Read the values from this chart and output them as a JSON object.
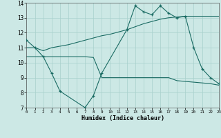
{
  "xlabel": "Humidex (Indice chaleur)",
  "bg_color": "#cce8e5",
  "grid_color": "#a8d0cc",
  "line_color": "#1a6b63",
  "xlim": [
    0,
    23
  ],
  "ylim": [
    7,
    14
  ],
  "xticks": [
    0,
    1,
    2,
    3,
    4,
    5,
    6,
    7,
    8,
    9,
    10,
    11,
    12,
    13,
    14,
    15,
    16,
    17,
    18,
    19,
    20,
    21,
    22,
    23
  ],
  "yticks": [
    7,
    8,
    9,
    10,
    11,
    12,
    13,
    14
  ],
  "line1_x": [
    0,
    1,
    2,
    3,
    4,
    7,
    8,
    9,
    12,
    13,
    14,
    15,
    16,
    17,
    18,
    19,
    20,
    21,
    22,
    23
  ],
  "line1_y": [
    11.5,
    11.0,
    10.4,
    9.3,
    8.1,
    7.0,
    7.8,
    9.3,
    12.2,
    13.8,
    13.4,
    13.2,
    13.8,
    13.3,
    13.0,
    13.1,
    11.0,
    9.6,
    9.0,
    8.6
  ],
  "line2_x": [
    0,
    1,
    2,
    3,
    4,
    5,
    6,
    7,
    8,
    9,
    10,
    11,
    12,
    13,
    14,
    15,
    16,
    17,
    18,
    19,
    20,
    21,
    22,
    23
  ],
  "line2_y": [
    11.0,
    11.0,
    10.8,
    11.0,
    11.1,
    11.2,
    11.35,
    11.5,
    11.65,
    11.8,
    11.9,
    12.05,
    12.2,
    12.4,
    12.6,
    12.75,
    12.9,
    13.0,
    13.05,
    13.1,
    13.1,
    13.1,
    13.1,
    13.1
  ],
  "line3_x": [
    0,
    1,
    2,
    3,
    4,
    5,
    6,
    7,
    8,
    9,
    10,
    11,
    12,
    13,
    14,
    15,
    16,
    17,
    18,
    19,
    20,
    21,
    22,
    23
  ],
  "line3_y": [
    10.4,
    10.4,
    10.4,
    10.4,
    10.4,
    10.4,
    10.4,
    10.4,
    10.35,
    9.0,
    9.0,
    9.0,
    9.0,
    9.0,
    9.0,
    9.0,
    9.0,
    9.0,
    8.8,
    8.75,
    8.7,
    8.65,
    8.6,
    8.5
  ]
}
